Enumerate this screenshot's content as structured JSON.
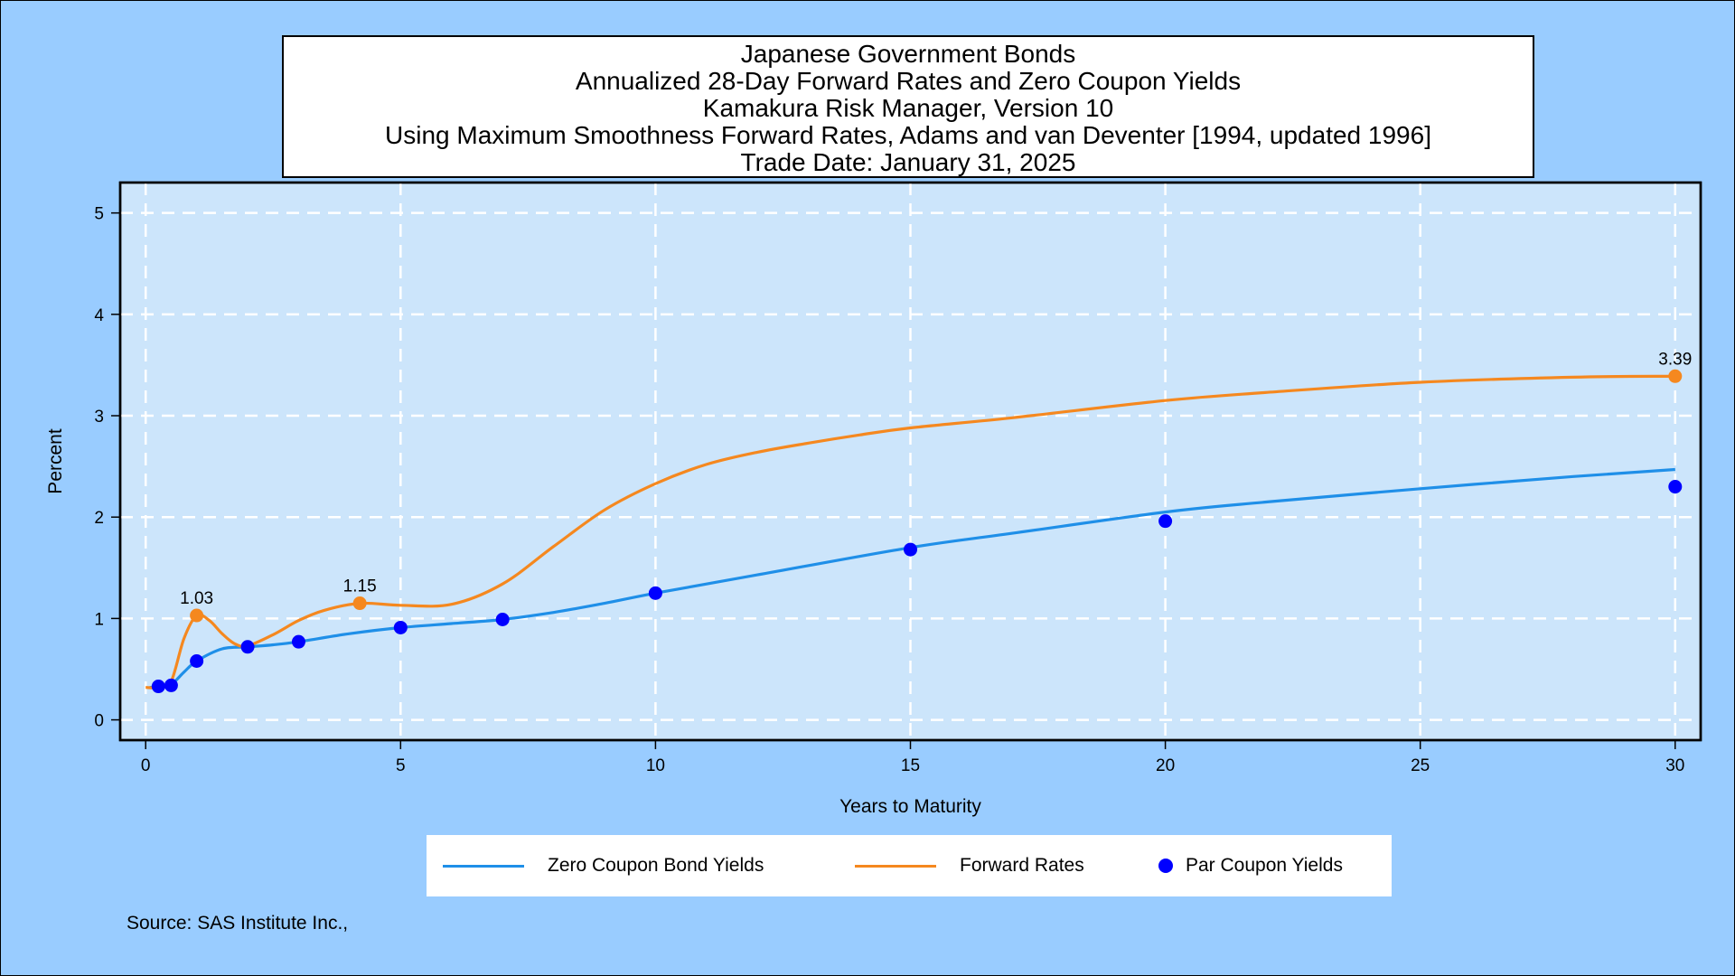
{
  "title": {
    "lines": [
      "Japanese Government Bonds",
      "Annualized 28-Day Forward Rates and Zero Coupon Yields",
      "Kamakura Risk Manager, Version 10",
      "Using Maximum Smoothness Forward Rates, Adams and van Deventer [1994, updated 1996]",
      "Trade Date: January 31, 2025"
    ]
  },
  "legend": {
    "zero_label": "Zero Coupon Bond Yields",
    "forward_label": "Forward Rates",
    "par_label": "Par Coupon Yields"
  },
  "source": "Source: SAS Institute Inc.,",
  "colors": {
    "background": "#99ccff",
    "plot_area": "#cce5fb",
    "zero_curve": "#1f8fe8",
    "forward_curve": "#f5881f",
    "par_points": "#0000ff",
    "grid": "#ffffff"
  },
  "chart_data": {
    "type": "line",
    "xlabel": "Years to Maturity",
    "ylabel": "Percent",
    "xlim": [
      -0.5,
      30.5
    ],
    "ylim": [
      -0.2,
      5.3
    ],
    "xticks": [
      0,
      5,
      10,
      15,
      20,
      25,
      30
    ],
    "yticks": [
      0,
      1,
      2,
      3,
      4,
      5
    ],
    "grid": true,
    "legend_position": "bottom",
    "series": [
      {
        "name": "Zero Coupon Bond Yields",
        "kind": "line",
        "color": "#1f8fe8",
        "points": [
          [
            0.08,
            0.32
          ],
          [
            0.25,
            0.33
          ],
          [
            0.5,
            0.35
          ],
          [
            0.75,
            0.47
          ],
          [
            1,
            0.58
          ],
          [
            1.5,
            0.7
          ],
          [
            2,
            0.72
          ],
          [
            2.5,
            0.74
          ],
          [
            3,
            0.77
          ],
          [
            4,
            0.85
          ],
          [
            5,
            0.91
          ],
          [
            6,
            0.95
          ],
          [
            7,
            0.99
          ],
          [
            8,
            1.06
          ],
          [
            9,
            1.15
          ],
          [
            10,
            1.25
          ],
          [
            12,
            1.43
          ],
          [
            15,
            1.7
          ],
          [
            17,
            1.84
          ],
          [
            20,
            2.05
          ],
          [
            22,
            2.15
          ],
          [
            25,
            2.28
          ],
          [
            28,
            2.4
          ],
          [
            30,
            2.47
          ]
        ]
      },
      {
        "name": "Forward Rates",
        "kind": "line",
        "color": "#f5881f",
        "points": [
          [
            0.0,
            0.32
          ],
          [
            0.25,
            0.32
          ],
          [
            0.5,
            0.38
          ],
          [
            0.75,
            0.8
          ],
          [
            1.0,
            1.03
          ],
          [
            1.25,
            0.98
          ],
          [
            1.5,
            0.85
          ],
          [
            1.75,
            0.75
          ],
          [
            2.0,
            0.73
          ],
          [
            2.5,
            0.84
          ],
          [
            3.0,
            0.98
          ],
          [
            3.5,
            1.08
          ],
          [
            4.2,
            1.15
          ],
          [
            5.0,
            1.13
          ],
          [
            6.0,
            1.14
          ],
          [
            7.0,
            1.34
          ],
          [
            8.0,
            1.71
          ],
          [
            9.0,
            2.07
          ],
          [
            10.0,
            2.33
          ],
          [
            11.0,
            2.52
          ],
          [
            12.0,
            2.64
          ],
          [
            13.0,
            2.73
          ],
          [
            14.0,
            2.81
          ],
          [
            15.0,
            2.88
          ],
          [
            17.0,
            2.98
          ],
          [
            20.0,
            3.15
          ],
          [
            22.0,
            3.23
          ],
          [
            25.0,
            3.33
          ],
          [
            28.0,
            3.38
          ],
          [
            30.0,
            3.39
          ]
        ]
      },
      {
        "name": "Par Coupon Yields",
        "kind": "scatter",
        "color": "#0000ff",
        "points": [
          [
            0.25,
            0.33
          ],
          [
            0.5,
            0.34
          ],
          [
            1,
            0.58
          ],
          [
            2,
            0.72
          ],
          [
            3,
            0.77
          ],
          [
            5,
            0.91
          ],
          [
            7,
            0.99
          ],
          [
            10,
            1.25
          ],
          [
            15,
            1.68
          ],
          [
            20,
            1.96
          ],
          [
            30,
            2.3
          ]
        ]
      }
    ],
    "highlighted_points": [
      {
        "x": 1.0,
        "y": 1.03,
        "label": "1.03"
      },
      {
        "x": 4.2,
        "y": 1.15,
        "label": "1.15"
      },
      {
        "x": 30.0,
        "y": 3.39,
        "label": "3.39"
      }
    ]
  }
}
